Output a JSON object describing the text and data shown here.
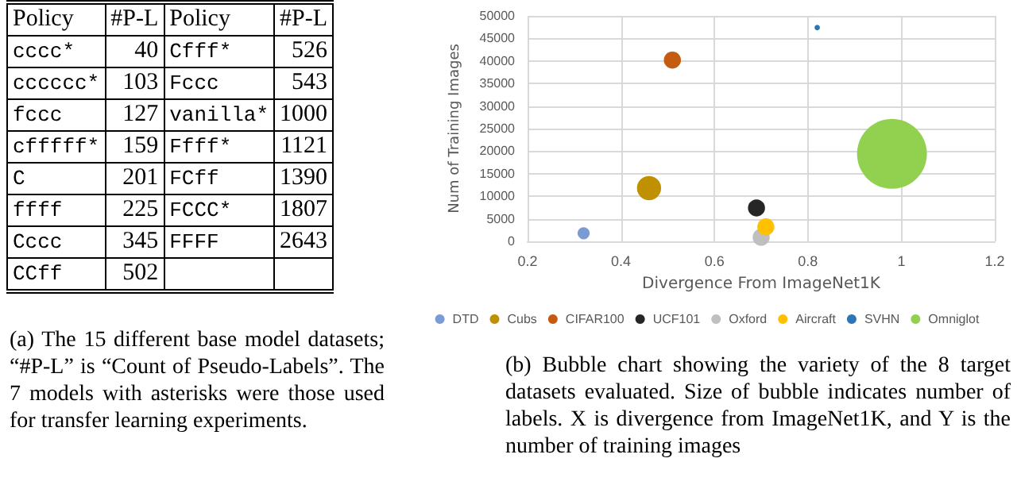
{
  "chart_data": [
    {
      "type": "other",
      "title": "(a) The 15 different base model datasets; “#P-L” is “Count of Pseudo-Labels”. The 7 models with asterisks were those used for transfer learning experiments.",
      "annotations": [
        "Policy",
        "#P-L",
        "Policy",
        "#P-L",
        "cccc*",
        "40",
        "Cfff*",
        "526",
        "cccccc*",
        "103",
        "Fccc",
        "543",
        "fccc",
        "127",
        "vanilla*",
        "1000",
        "cfffff*",
        "159",
        "Ffff*",
        "1121",
        "C",
        "201",
        "FCff",
        "1390",
        "ffff",
        "225",
        "FCCC*",
        "1807",
        "Cccc",
        "345",
        "FFFF",
        "2643",
        "CCff",
        "502"
      ]
    },
    {
      "type": "bubble",
      "xlabel": "Divergence From ImageNet1K",
      "ylabel": "Num of Training Images",
      "xlim": [
        0.2,
        1.2
      ],
      "xticks": [
        0.2,
        0.4,
        0.6,
        0.8,
        1,
        1.2
      ],
      "ylim": [
        0,
        50000
      ],
      "yticks": [
        0,
        5000,
        10000,
        15000,
        20000,
        25000,
        30000,
        35000,
        40000,
        45000,
        50000
      ],
      "grid": true,
      "legend": "bottom",
      "annotations": [
        "(b) Bubble chart showing the variety of the 8 target datasets evaluated. Size of bubble indicates number of labels. X is divergence from ImageNet1K, and Y is the number of training images"
      ],
      "series": [
        {
          "name": "DTD",
          "color": "#7a9bd4",
          "x": [
            0.32
          ],
          "values": [
            1800
          ],
          "sizes": [
            0.03
          ]
        },
        {
          "name": "Cubs",
          "color": "#bf9000",
          "x": [
            0.46
          ],
          "values": [
            11800
          ],
          "sizes": [
            0.12
          ]
        },
        {
          "name": "CIFAR100",
          "color": "#c55a11",
          "x": [
            0.51
          ],
          "values": [
            40200
          ],
          "sizes": [
            0.06
          ]
        },
        {
          "name": "UCF101",
          "color": "#262626",
          "x": [
            0.69
          ],
          "values": [
            7400
          ],
          "sizes": [
            0.06
          ]
        },
        {
          "name": "Oxford",
          "color": "#bfbfbf",
          "x": [
            0.7
          ],
          "values": [
            900
          ],
          "sizes": [
            0.06
          ]
        },
        {
          "name": "Aircraft",
          "color": "#ffc000",
          "x": [
            0.71
          ],
          "values": [
            3200
          ],
          "sizes": [
            0.06
          ]
        },
        {
          "name": "SVHN",
          "color": "#2e75b6",
          "x": [
            0.82
          ],
          "values": [
            47400
          ],
          "sizes": [
            0.006
          ]
        },
        {
          "name": "Omniglot",
          "color": "#92d050",
          "x": [
            0.98
          ],
          "values": [
            19400
          ],
          "sizes": [
            1
          ]
        }
      ]
    }
  ]
}
